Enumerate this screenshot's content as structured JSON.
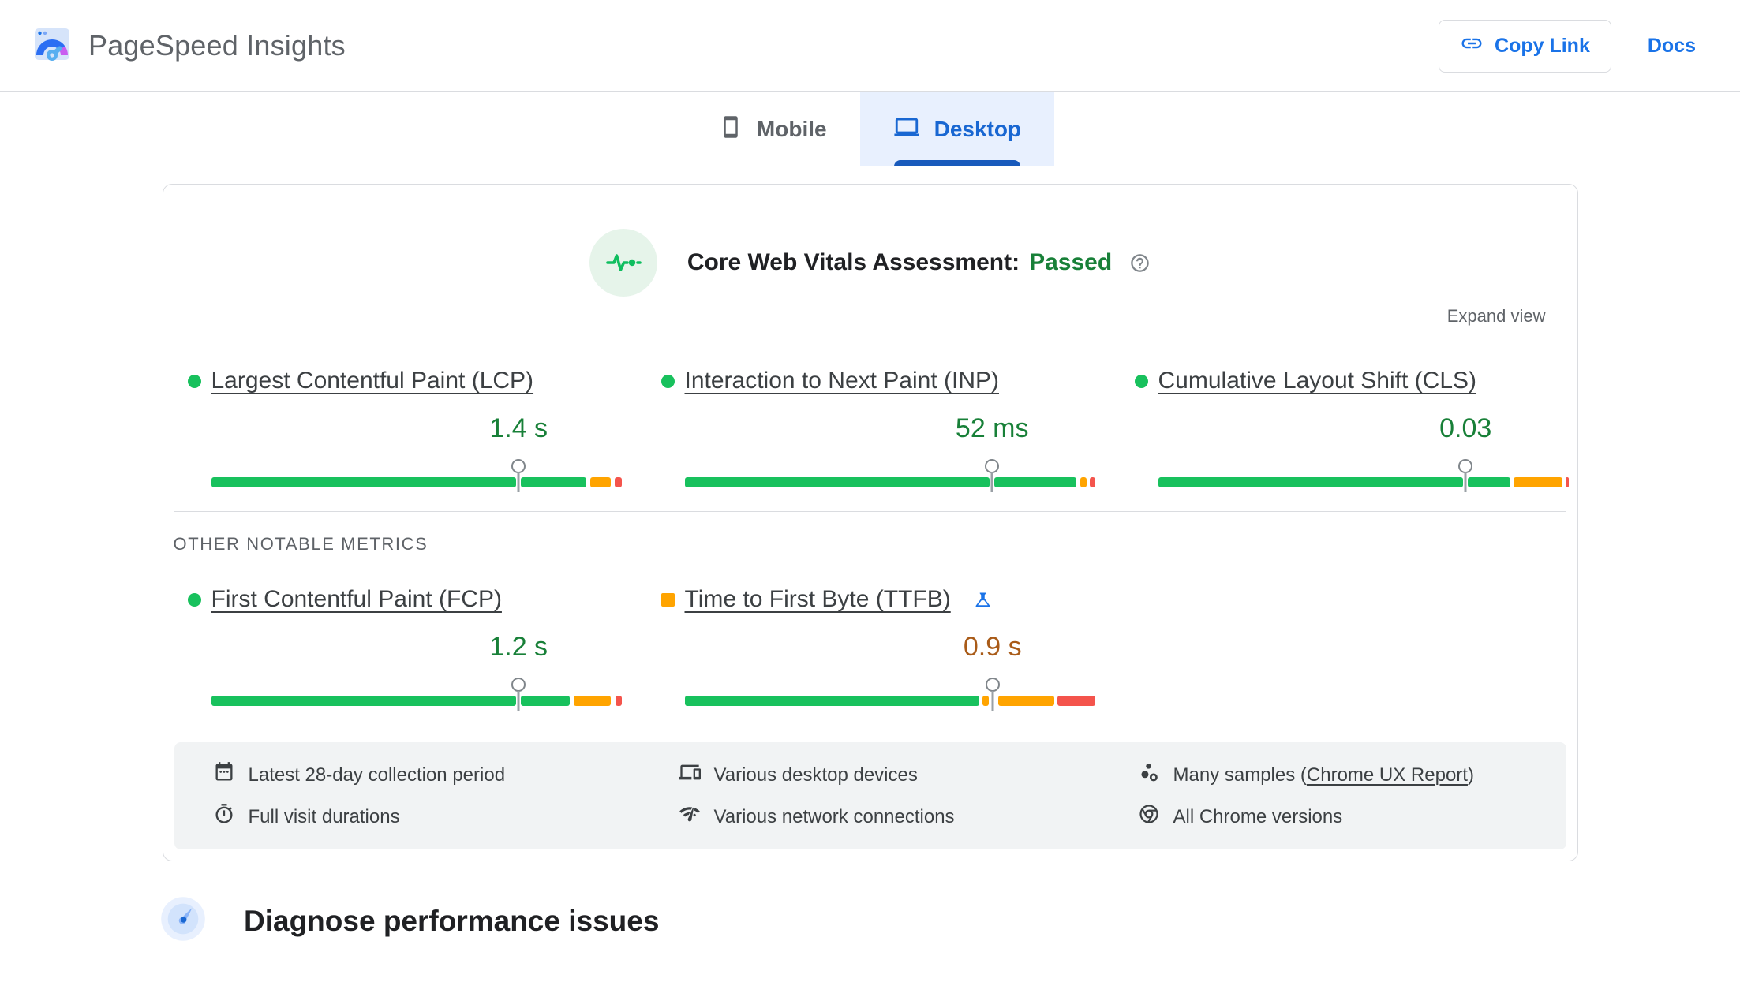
{
  "header": {
    "app_title": "PageSpeed Insights",
    "copy_link_label": "Copy Link",
    "docs_label": "Docs"
  },
  "tabs": [
    {
      "label": "Mobile",
      "active": false
    },
    {
      "label": "Desktop",
      "active": true
    }
  ],
  "assessment": {
    "title": "Core Web Vitals Assessment:",
    "result": "Passed",
    "expand_label": "Expand view"
  },
  "colors": {
    "good": "#18c15d",
    "average": "#ffa400",
    "poor": "#f4544c",
    "good_text": "#188038",
    "average_text": "#a95b18",
    "accent_blue": "#1a73e8"
  },
  "core_metrics": [
    {
      "name": "Largest Contentful Paint (LCP)",
      "value": "1.4 s",
      "status": "good",
      "marker": 74.8,
      "segments": [
        [
          0,
          74.2,
          "good"
        ],
        [
          75.4,
          91.3,
          "good"
        ],
        [
          92.2,
          97.3,
          "average"
        ],
        [
          98.2,
          100,
          "poor"
        ]
      ]
    },
    {
      "name": "Interaction to Next Paint (INP)",
      "value": "52 ms",
      "status": "good",
      "marker": 74.8,
      "segments": [
        [
          0,
          74.2,
          "good"
        ],
        [
          75.4,
          95.3,
          "good"
        ],
        [
          96.2,
          97.7,
          "average"
        ],
        [
          98.5,
          100,
          "poor"
        ]
      ]
    },
    {
      "name": "Cumulative Layout Shift (CLS)",
      "value": "0.03",
      "status": "good",
      "marker": 74.8,
      "segments": [
        [
          0,
          74.2,
          "good"
        ],
        [
          75.4,
          85.7,
          "good"
        ],
        [
          86.5,
          98.4,
          "average"
        ],
        [
          99.2,
          100,
          "poor"
        ]
      ]
    }
  ],
  "other_metrics_title": "OTHER NOTABLE METRICS",
  "other_metrics": [
    {
      "name": "First Contentful Paint (FCP)",
      "value": "1.2 s",
      "status": "good",
      "marker": 74.8,
      "segments": [
        [
          0,
          74.2,
          "good"
        ],
        [
          75.4,
          87.2,
          "good"
        ],
        [
          88.1,
          97.3,
          "average"
        ],
        [
          98.4,
          100,
          "poor"
        ]
      ]
    },
    {
      "name": "Time to First Byte (TTFB)",
      "value": "0.9 s",
      "status": "average",
      "experimental": true,
      "marker": 74.9,
      "segments": [
        [
          0,
          71.7,
          "good"
        ],
        [
          72.5,
          73.9,
          "average"
        ],
        [
          76.2,
          89.9,
          "average"
        ],
        [
          90.7,
          100,
          "poor"
        ]
      ]
    }
  ],
  "footnotes": [
    {
      "icon": "calendar-icon",
      "text": "Latest 28-day collection period"
    },
    {
      "icon": "devices-icon",
      "text": "Various desktop devices"
    },
    {
      "icon": "samples-icon",
      "text_prefix": "Many samples (",
      "link": "Chrome UX Report",
      "text_suffix": ")"
    },
    {
      "icon": "timer-icon",
      "text": "Full visit durations"
    },
    {
      "icon": "network-icon",
      "text": "Various network connections"
    },
    {
      "icon": "chrome-icon",
      "text": "All Chrome versions"
    }
  ],
  "diagnose": {
    "title": "Diagnose performance issues"
  }
}
